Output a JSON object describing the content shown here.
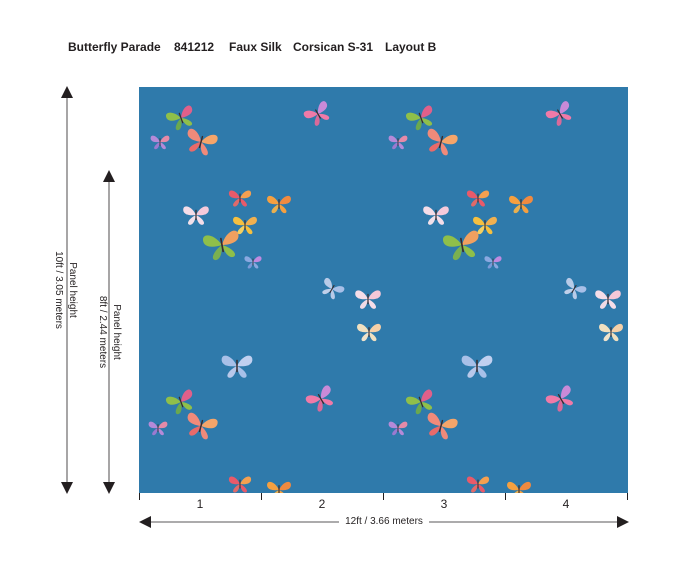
{
  "header": {
    "name": "Butterfly Parade",
    "code": "841212",
    "material": "Faux Silk",
    "colorway": "Corsican S-31",
    "layout": "Layout B"
  },
  "panel_height_outer": {
    "label": "Panel height",
    "value": "10ft / 3.05 meters"
  },
  "panel_height_inner": {
    "label": "Panel height",
    "value": "8ft / 2.44 meters"
  },
  "panels": [
    "1",
    "2",
    "3",
    "4"
  ],
  "width_label": "12ft  / 3.66 meters",
  "colors": {
    "background": "#2f7aab",
    "text": "#231f20"
  },
  "icons": [
    "butterfly-icon",
    "arrow-up-icon",
    "arrow-down-icon",
    "arrow-left-icon",
    "arrow-right-icon"
  ]
}
